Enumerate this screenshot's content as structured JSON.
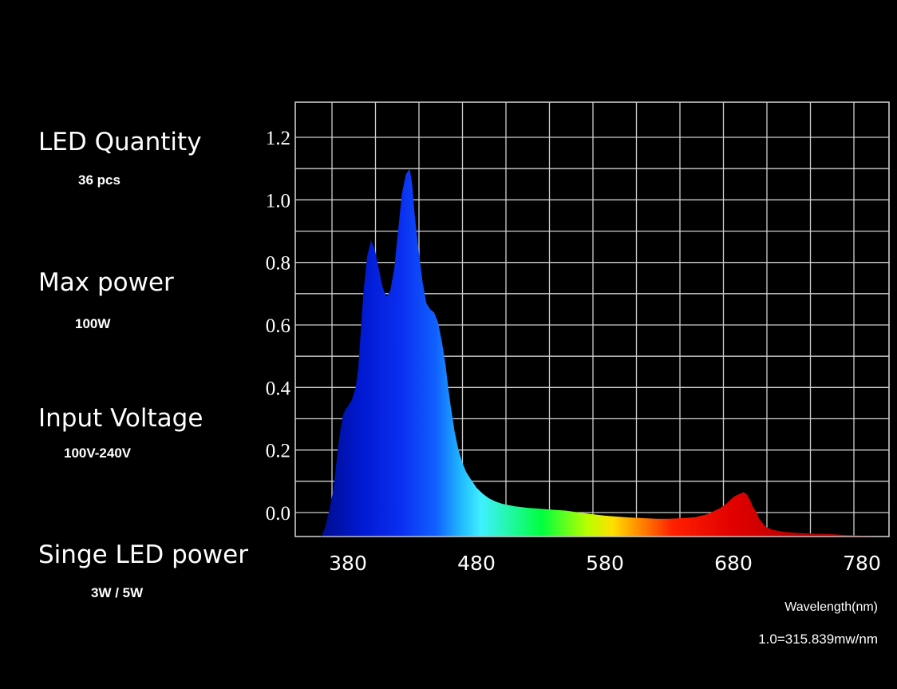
{
  "specs": [
    {
      "label": "LED Quantity",
      "value": "36 pcs"
    },
    {
      "label": "Max power",
      "value": "100W"
    },
    {
      "label": "Input Voltage",
      "value": "100V-240V"
    },
    {
      "label": "Singe LED power",
      "value": "3W / 5W"
    }
  ],
  "chart_data": {
    "type": "area",
    "xlabel": "Wavelength(nm)",
    "ylabel": "",
    "unit_note": "1.0=315.839mw/nm",
    "xlim": [
      350,
      800
    ],
    "ylim": [
      -0.08,
      1.3
    ],
    "grid": true,
    "x_ticks": [
      "380",
      "480",
      "580",
      "680",
      "780"
    ],
    "x_tick_values": [
      380,
      480,
      580,
      680,
      780
    ],
    "y_ticks": [
      "1.2",
      "1.0",
      "0.8",
      "0.6",
      "0.4",
      "0.2",
      "0.0"
    ],
    "y_tick_values": [
      1.2,
      1.0,
      0.8,
      0.6,
      0.4,
      0.2,
      0.0
    ],
    "x_gridlines": [
      360,
      380,
      410,
      440,
      470,
      500,
      530,
      560,
      590,
      620,
      650,
      680,
      710,
      740,
      770,
      800
    ],
    "series": [
      {
        "x": [
          359,
          362,
          365,
          368,
          370,
          372,
          374,
          376,
          378,
          380,
          383,
          386,
          388,
          390,
          392,
          395,
          398,
          401,
          404,
          407,
          410,
          413,
          416,
          419,
          422,
          425,
          428,
          430,
          432,
          435,
          438,
          441,
          444,
          447,
          450,
          453,
          456,
          458,
          460,
          463,
          466,
          469,
          472,
          475,
          480,
          485,
          490,
          495,
          500,
          510,
          520,
          530,
          540,
          550,
          560,
          570,
          580,
          590,
          600,
          610,
          620,
          630,
          640,
          650,
          660,
          670,
          675,
          680,
          685,
          688,
          690,
          693,
          695,
          698,
          700,
          705,
          710,
          720,
          730,
          740,
          750,
          760,
          770,
          780,
          790,
          800
        ],
        "y": [
          -0.08,
          -0.05,
          0.0,
          0.06,
          0.12,
          0.2,
          0.26,
          0.31,
          0.33,
          0.34,
          0.36,
          0.4,
          0.46,
          0.58,
          0.7,
          0.82,
          0.87,
          0.84,
          0.78,
          0.72,
          0.69,
          0.71,
          0.78,
          0.9,
          1.02,
          1.08,
          1.1,
          1.05,
          0.95,
          0.84,
          0.74,
          0.67,
          0.65,
          0.64,
          0.61,
          0.55,
          0.47,
          0.4,
          0.34,
          0.26,
          0.2,
          0.16,
          0.13,
          0.11,
          0.08,
          0.06,
          0.045,
          0.035,
          0.028,
          0.02,
          0.015,
          0.012,
          0.009,
          0.006,
          0.0,
          -0.005,
          -0.01,
          -0.013,
          -0.016,
          -0.018,
          -0.02,
          -0.02,
          -0.018,
          -0.015,
          -0.005,
          0.015,
          0.03,
          0.05,
          0.06,
          0.065,
          0.06,
          0.04,
          0.02,
          0.0,
          -0.02,
          -0.045,
          -0.055,
          -0.062,
          -0.065,
          -0.067,
          -0.068,
          -0.07,
          -0.072,
          -0.074,
          -0.075,
          -0.075
        ]
      }
    ],
    "spectrum_colors": [
      "#000a7a",
      "#0018d0",
      "#0a2ef0",
      "#1060ff",
      "#20b8ff",
      "#40f0ff",
      "#00ff40",
      "#b8ff00",
      "#ffe000",
      "#ff8000",
      "#ff2000",
      "#e00000",
      "#b00000"
    ]
  }
}
